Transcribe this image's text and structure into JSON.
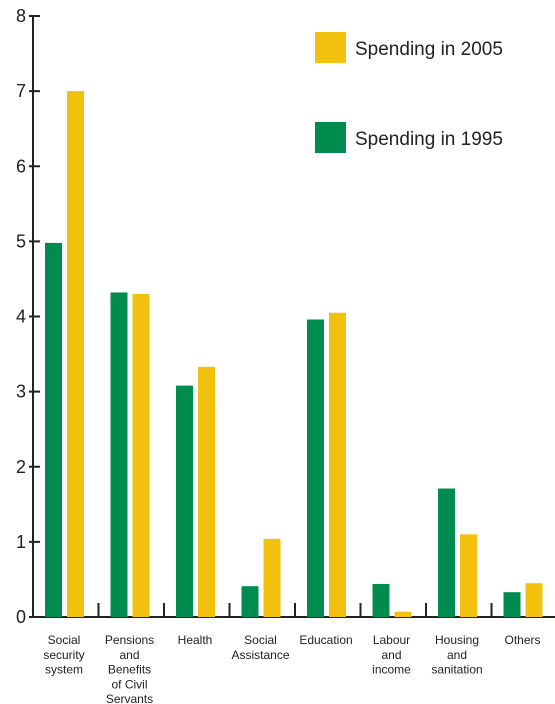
{
  "chart_data": {
    "type": "bar",
    "categories": [
      [
        "Social",
        "security",
        "system"
      ],
      [
        "Pensions",
        "and",
        "Benefits",
        "of Civil",
        "Servants"
      ],
      [
        "Health"
      ],
      [
        "Social",
        "Assistance"
      ],
      [
        "Education"
      ],
      [
        "Labour",
        "and",
        "income"
      ],
      [
        "Housing",
        "and",
        "sanitation"
      ],
      [
        "Others"
      ]
    ],
    "series": [
      {
        "name": "Spending in 1995",
        "color": "#008C4F",
        "values": [
          4.98,
          4.32,
          3.08,
          0.41,
          3.96,
          0.44,
          1.71,
          0.33
        ]
      },
      {
        "name": "Spending in 2005",
        "color": "#F2C10D",
        "values": [
          7.0,
          4.3,
          3.33,
          1.04,
          4.05,
          0.07,
          1.1,
          0.45
        ]
      }
    ],
    "ylim": [
      0,
      8
    ],
    "yticks": [
      "0",
      "1",
      "2",
      "3",
      "4",
      "5",
      "6",
      "7",
      "8"
    ],
    "legend_position": "top-right",
    "legend_order": [
      1,
      0
    ],
    "grid": false
  }
}
